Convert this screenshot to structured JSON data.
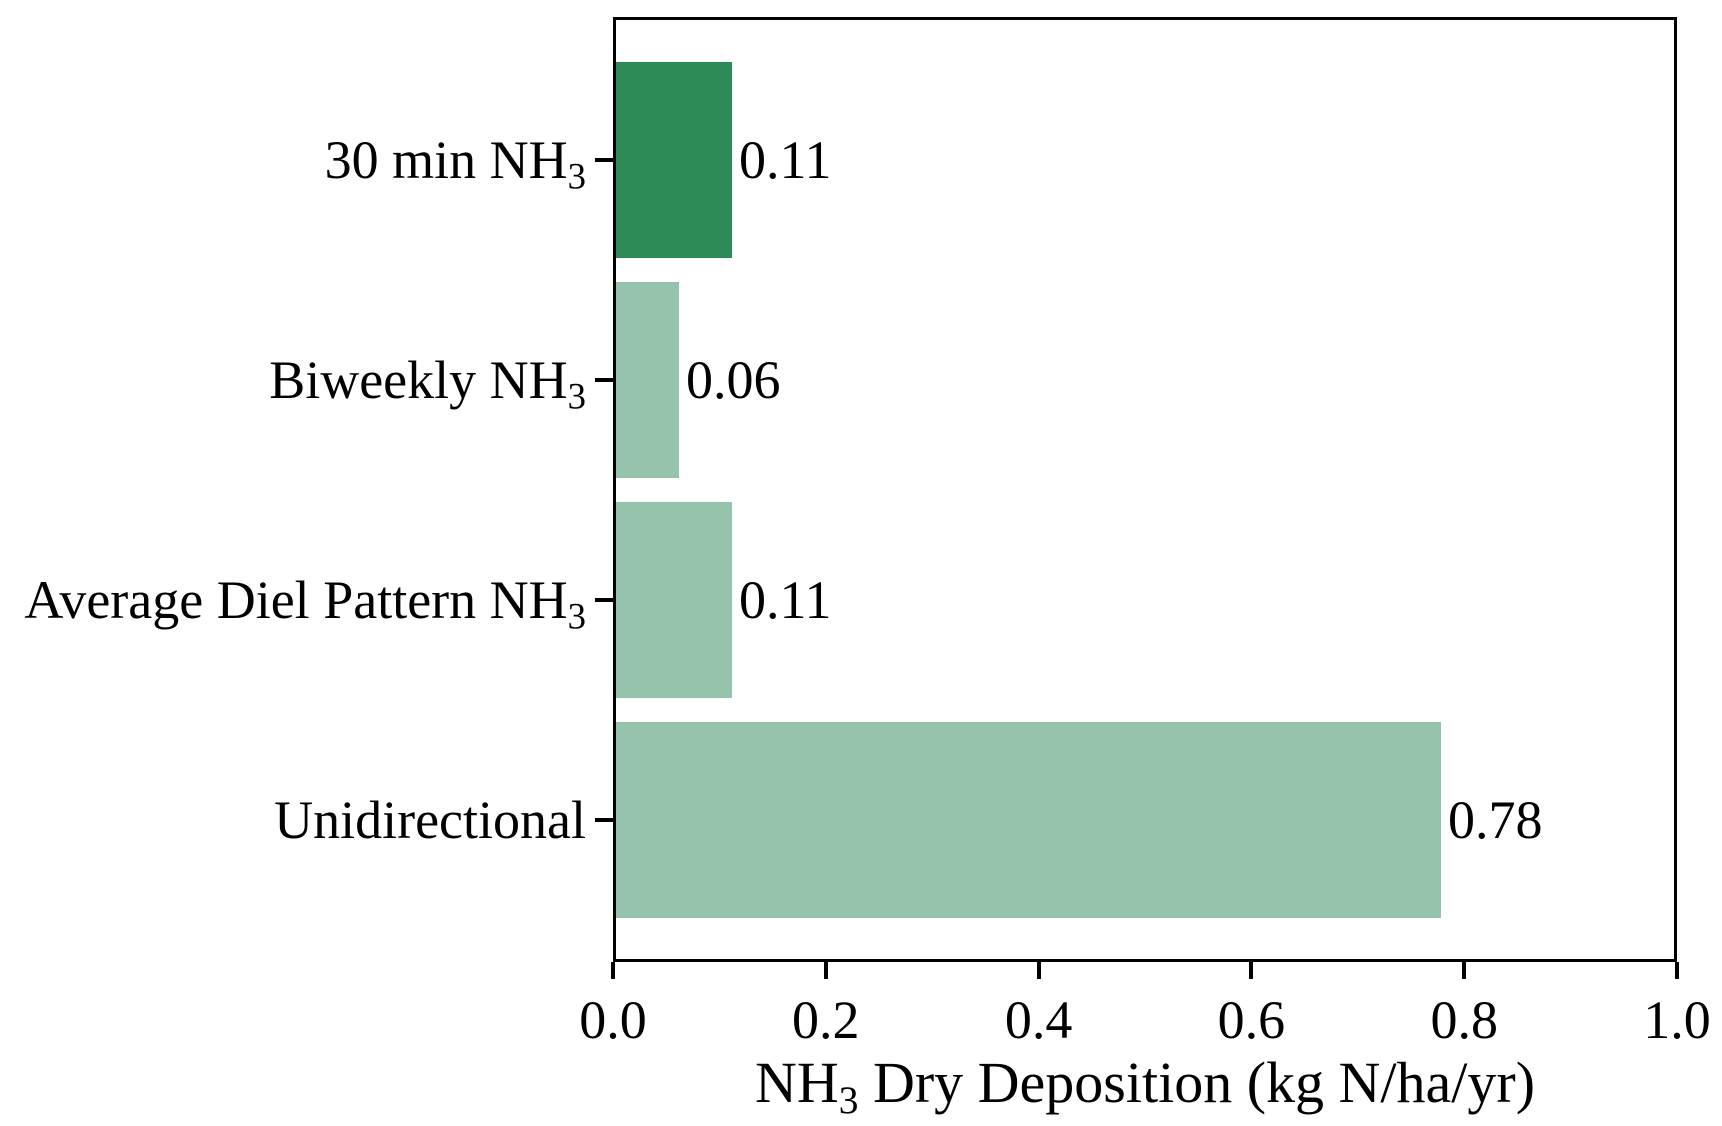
{
  "figure": {
    "background": "#ffffff",
    "axis_color": "#000000"
  },
  "chart_data": {
    "type": "bar",
    "orientation": "horizontal",
    "title": "",
    "categories": [
      {
        "text": "30 min NH",
        "sub": "3"
      },
      {
        "text": "Biweekly NH",
        "sub": "3"
      },
      {
        "text": "Average Diel Pattern NH",
        "sub": "3"
      },
      {
        "text": "Unidirectional",
        "sub": ""
      }
    ],
    "values": [
      0.11,
      0.06,
      0.11,
      0.78
    ],
    "bar_labels": [
      "0.11",
      "0.06",
      "0.11",
      "0.78"
    ],
    "bar_colors": [
      "#2e8b57",
      "#96c3ac",
      "#96c3ac",
      "#96c3ac"
    ],
    "xlabel": {
      "pre": "NH",
      "sub": "3",
      "post": " Dry Deposition (kg N/ha/yr)"
    },
    "xlim": [
      0.0,
      1.0
    ],
    "xticks": [
      {
        "value": 0.0,
        "label": "0.0"
      },
      {
        "value": 0.2,
        "label": "0.2"
      },
      {
        "value": 0.4,
        "label": "0.4"
      },
      {
        "value": 0.6,
        "label": "0.6"
      },
      {
        "value": 0.8,
        "label": "0.8"
      },
      {
        "value": 1.0,
        "label": "1.0"
      }
    ],
    "grid": false,
    "legend": "none"
  }
}
